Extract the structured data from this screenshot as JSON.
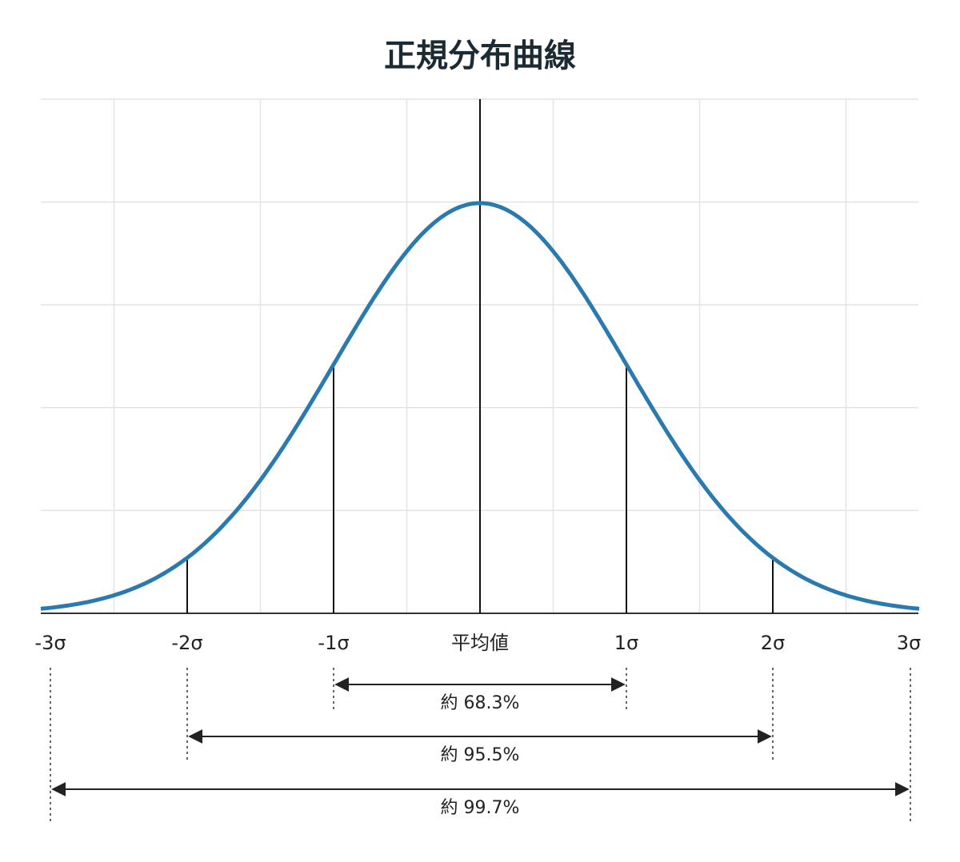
{
  "title": "正規分布曲線",
  "axis_labels": [
    "-3σ",
    "-2σ",
    "-1σ",
    "平均値",
    "1σ",
    "2σ",
    "3σ"
  ],
  "ranges": [
    {
      "label": "約 68.3%"
    },
    {
      "label": "約 95.5%"
    },
    {
      "label": "約 99.7%"
    }
  ]
}
